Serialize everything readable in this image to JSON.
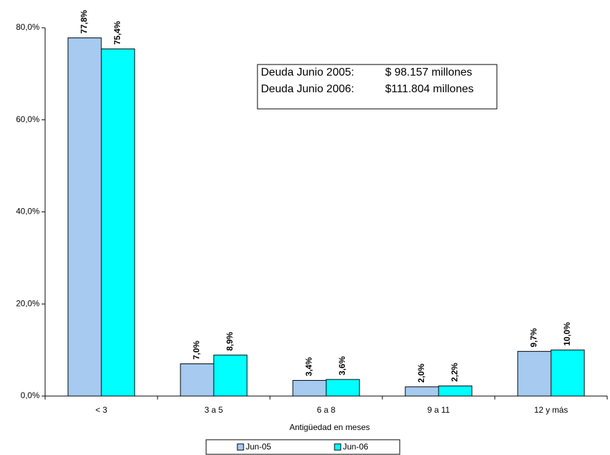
{
  "chart_data": {
    "type": "bar",
    "x_label": "Antigüedad en meses",
    "categories": [
      "< 3",
      "3 a 5",
      "6 a 8",
      "9 a 11",
      "12 y más"
    ],
    "series": [
      {
        "name": "Jun-05",
        "color": "#a6caf0",
        "values": [
          77.8,
          7.0,
          3.4,
          2.0,
          9.7
        ],
        "value_labels": [
          "77,8%",
          "7,0%",
          "3,4%",
          "2,0%",
          "9,7%"
        ]
      },
      {
        "name": "Jun-06",
        "color": "#00ffff",
        "values": [
          75.4,
          8.9,
          3.6,
          2.2,
          10.0
        ],
        "value_labels": [
          "75,4%",
          "8,9%",
          "3,6%",
          "2,2%",
          "10,0%"
        ]
      }
    ],
    "ylim": [
      0,
      80
    ],
    "yticks": [
      {
        "value": 0,
        "label": "0,0%"
      },
      {
        "value": 20,
        "label": "20,0%"
      },
      {
        "value": 40,
        "label": "40,0%"
      },
      {
        "value": 60,
        "label": "60,0%"
      },
      {
        "value": 80,
        "label": "80,0%"
      }
    ],
    "annotation": [
      [
        "Deuda Junio 2005:",
        "$  98.157 millones"
      ],
      [
        "Deuda Junio 2006:",
        "$111.804 millones"
      ]
    ],
    "legend": "bottom"
  }
}
